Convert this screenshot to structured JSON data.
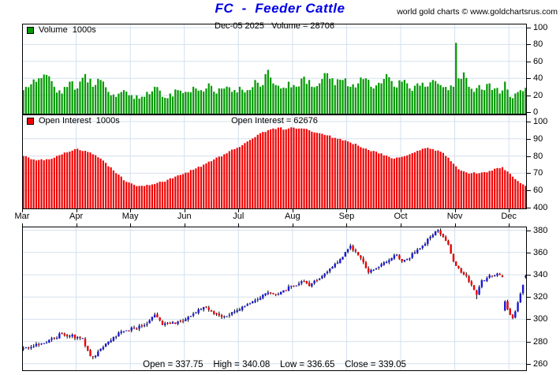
{
  "title": "FC  -  Feeder Cattle",
  "attribution": "world gold charts © www.goldchartsrus.com",
  "colors": {
    "title": "#0000e6",
    "volume_bar": "#009900",
    "open_interest_bar": "#f00000",
    "candle_up": "#1818d8",
    "candle_down": "#f00000",
    "wick": "#000000",
    "grid": "#d4e0ee",
    "border": "#000000"
  },
  "legends": {
    "volume": "Volume  1000s",
    "open_interest": "Open Interest  1000s"
  },
  "headers": {
    "volume": "Dec-05 2025   Volume = 28706",
    "open_interest": "Open Interest = 62676"
  },
  "footer": {
    "ohlc": "Open = 337.75    High = 340.08    Low = 336.65    Close = 339.05"
  },
  "axes": {
    "volume_ticks": [
      100,
      80,
      60,
      40,
      20,
      0
    ],
    "open_interest_ticks": [
      100,
      90,
      80,
      70,
      60
    ],
    "price_ticks": [
      400,
      380,
      360,
      340,
      320,
      300,
      280,
      260
    ],
    "months": [
      "Mar",
      "Apr",
      "May",
      "Jun",
      "Jul",
      "Aug",
      "Sep",
      "Oct",
      "Nov",
      "Dec"
    ]
  },
  "chart_data": [
    {
      "type": "bar",
      "name": "volume",
      "title": "Volume 1000s",
      "units": "1000s of contracts",
      "ylim": [
        0,
        100
      ],
      "n_bars": 196,
      "last_date": "Dec-05 2025",
      "last_value": 28.706,
      "anchors": [
        [
          0,
          26
        ],
        [
          3,
          33
        ],
        [
          6,
          40
        ],
        [
          9,
          44
        ],
        [
          12,
          30
        ],
        [
          15,
          22
        ],
        [
          18,
          36
        ],
        [
          21,
          28
        ],
        [
          24,
          45
        ],
        [
          27,
          30
        ],
        [
          30,
          38
        ],
        [
          33,
          24
        ],
        [
          36,
          18
        ],
        [
          39,
          26
        ],
        [
          42,
          20
        ],
        [
          45,
          16
        ],
        [
          48,
          24
        ],
        [
          51,
          30
        ],
        [
          54,
          18
        ],
        [
          57,
          22
        ],
        [
          60,
          26
        ],
        [
          63,
          24
        ],
        [
          66,
          30
        ],
        [
          69,
          26
        ],
        [
          72,
          34
        ],
        [
          75,
          22
        ],
        [
          78,
          28
        ],
        [
          81,
          24
        ],
        [
          84,
          30
        ],
        [
          87,
          26
        ],
        [
          90,
          38
        ],
        [
          93,
          32
        ],
        [
          95,
          50
        ],
        [
          97,
          34
        ],
        [
          100,
          28
        ],
        [
          103,
          36
        ],
        [
          106,
          30
        ],
        [
          109,
          42
        ],
        [
          112,
          30
        ],
        [
          115,
          34
        ],
        [
          118,
          46
        ],
        [
          121,
          32
        ],
        [
          124,
          38
        ],
        [
          127,
          30
        ],
        [
          130,
          34
        ],
        [
          133,
          40
        ],
        [
          136,
          28
        ],
        [
          139,
          34
        ],
        [
          141,
          45
        ],
        [
          144,
          30
        ],
        [
          147,
          36
        ],
        [
          150,
          28
        ],
        [
          153,
          34
        ],
        [
          156,
          30
        ],
        [
          159,
          38
        ],
        [
          162,
          32
        ],
        [
          165,
          26
        ],
        [
          167,
          30
        ],
        [
          168,
          82
        ],
        [
          169,
          40
        ],
        [
          171,
          47
        ],
        [
          173,
          30
        ],
        [
          175,
          24
        ],
        [
          177,
          32
        ],
        [
          179,
          26
        ],
        [
          181,
          34
        ],
        [
          183,
          28
        ],
        [
          185,
          22
        ],
        [
          187,
          36
        ],
        [
          189,
          18
        ],
        [
          191,
          22
        ],
        [
          193,
          26
        ],
        [
          195,
          28.7
        ]
      ]
    },
    {
      "type": "bar",
      "name": "open_interest",
      "title": "Open Interest 1000s",
      "units": "1000s of contracts",
      "ylim_visible": [
        60,
        100
      ],
      "n_bars": 196,
      "last_value": 62.676,
      "anchors": [
        [
          0,
          80
        ],
        [
          4,
          78
        ],
        [
          8,
          77.5
        ],
        [
          12,
          79
        ],
        [
          16,
          82
        ],
        [
          20,
          84
        ],
        [
          24,
          83
        ],
        [
          28,
          80.5
        ],
        [
          32,
          76
        ],
        [
          36,
          70
        ],
        [
          40,
          65
        ],
        [
          44,
          62.5
        ],
        [
          47,
          62.5
        ],
        [
          50,
          63.5
        ],
        [
          54,
          65
        ],
        [
          58,
          67
        ],
        [
          62,
          69.5
        ],
        [
          66,
          72
        ],
        [
          70,
          75
        ],
        [
          74,
          78
        ],
        [
          78,
          81
        ],
        [
          82,
          84
        ],
        [
          86,
          87.5
        ],
        [
          90,
          91
        ],
        [
          93,
          94
        ],
        [
          96,
          95.5
        ],
        [
          99,
          96.5
        ],
        [
          102,
          95.5
        ],
        [
          105,
          96.5
        ],
        [
          108,
          96
        ],
        [
          111,
          95
        ],
        [
          114,
          93.5
        ],
        [
          118,
          92
        ],
        [
          122,
          90
        ],
        [
          126,
          88.5
        ],
        [
          130,
          86
        ],
        [
          134,
          83.5
        ],
        [
          138,
          81.5
        ],
        [
          142,
          79.5
        ],
        [
          144,
          78.5
        ],
        [
          147,
          79.5
        ],
        [
          150,
          81
        ],
        [
          153,
          83
        ],
        [
          156,
          84.5
        ],
        [
          159,
          84
        ],
        [
          162,
          82.5
        ],
        [
          164,
          80
        ],
        [
          166,
          77
        ],
        [
          168,
          74
        ],
        [
          170,
          71.5
        ],
        [
          172,
          70.5
        ],
        [
          174,
          70
        ],
        [
          177,
          70
        ],
        [
          180,
          70.5
        ],
        [
          182,
          71.5
        ],
        [
          184,
          73
        ],
        [
          186,
          73.5
        ],
        [
          188,
          71
        ],
        [
          190,
          68
        ],
        [
          192,
          65.5
        ],
        [
          194,
          63.5
        ],
        [
          195,
          62.676
        ]
      ]
    },
    {
      "type": "candlestick",
      "name": "price_daily",
      "title": "FC - Feeder Cattle daily price",
      "ylim": [
        260,
        400
      ],
      "n_bars": 196,
      "month_start_bars": [
        0,
        21,
        42,
        63,
        84,
        105,
        126,
        147,
        168,
        189
      ],
      "last_ohlc": {
        "open": 337.75,
        "high": 340.08,
        "low": 336.65,
        "close": 339.05
      },
      "close_anchors": [
        [
          0,
          274
        ],
        [
          3,
          275
        ],
        [
          6,
          277
        ],
        [
          9,
          279
        ],
        [
          12,
          283
        ],
        [
          15,
          287
        ],
        [
          18,
          285
        ],
        [
          21,
          284
        ],
        [
          23,
          283
        ],
        [
          25,
          272
        ],
        [
          26,
          267
        ],
        [
          27,
          266
        ],
        [
          29,
          271
        ],
        [
          31,
          275
        ],
        [
          34,
          281
        ],
        [
          37,
          288
        ],
        [
          40,
          290
        ],
        [
          43,
          292
        ],
        [
          46,
          294
        ],
        [
          49,
          299
        ],
        [
          51,
          304
        ],
        [
          54,
          295
        ],
        [
          57,
          296
        ],
        [
          60,
          298
        ],
        [
          63,
          300
        ],
        [
          66,
          305
        ],
        [
          70,
          311
        ],
        [
          73,
          307
        ],
        [
          77,
          302
        ],
        [
          80,
          304
        ],
        [
          83,
          308
        ],
        [
          86,
          312
        ],
        [
          90,
          317
        ],
        [
          93,
          322
        ],
        [
          95,
          324
        ],
        [
          98,
          322
        ],
        [
          101,
          326
        ],
        [
          104,
          330
        ],
        [
          107,
          332
        ],
        [
          109,
          334
        ],
        [
          111,
          330
        ],
        [
          114,
          335
        ],
        [
          117,
          341
        ],
        [
          120,
          347
        ],
        [
          123,
          354
        ],
        [
          126,
          363
        ],
        [
          127,
          366
        ],
        [
          129,
          361
        ],
        [
          131,
          355
        ],
        [
          133,
          346
        ],
        [
          134,
          342
        ],
        [
          137,
          346
        ],
        [
          140,
          351
        ],
        [
          143,
          355
        ],
        [
          145,
          358
        ],
        [
          147,
          352
        ],
        [
          149,
          354
        ],
        [
          152,
          360
        ],
        [
          155,
          366
        ],
        [
          158,
          374
        ],
        [
          160,
          379
        ],
        [
          161,
          380
        ],
        [
          163,
          374
        ],
        [
          165,
          367
        ],
        [
          166,
          359
        ],
        [
          167,
          352
        ],
        [
          168,
          348
        ],
        [
          170,
          342
        ],
        [
          172,
          339
        ],
        [
          174,
          331
        ],
        [
          176,
          322
        ],
        [
          177,
          329
        ],
        [
          178,
          335
        ],
        [
          180,
          337
        ],
        [
          182,
          339
        ],
        [
          184,
          341
        ],
        [
          186,
          338
        ],
        [
          187,
          316
        ],
        [
          188,
          309
        ],
        [
          189,
          304
        ],
        [
          190,
          301
        ],
        [
          191,
          307
        ],
        [
          192,
          315
        ],
        [
          193,
          323
        ],
        [
          194,
          331
        ],
        [
          195,
          339.05
        ]
      ],
      "open_overrides": {
        "0": 273,
        "187": 308
      },
      "low_overrides": {
        "27": 264,
        "176": 318,
        "190": 300
      },
      "high_overrides": {
        "161": 381
      }
    }
  ]
}
